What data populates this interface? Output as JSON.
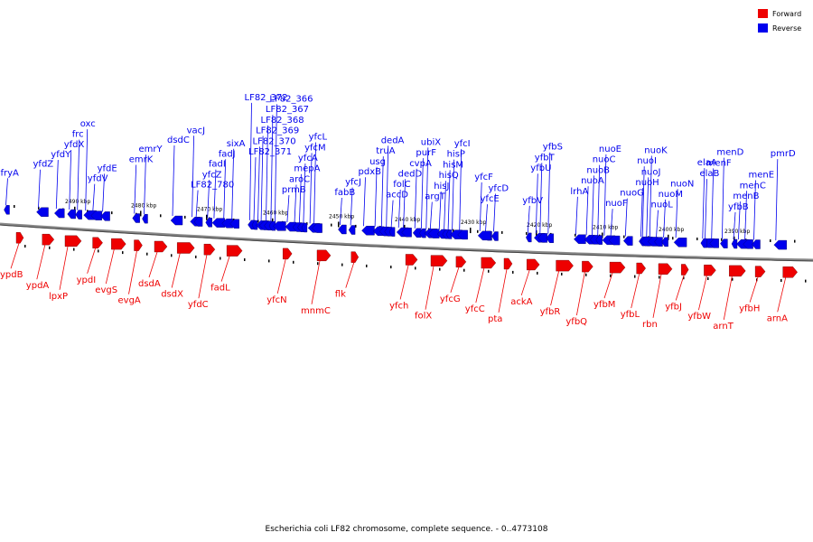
{
  "legend": {
    "forward_label": "Forward",
    "reverse_label": "Reverse",
    "forward_color": "#ee0000",
    "reverse_color": "#0000ee"
  },
  "caption": "Escherichia coli LF82 chromosome, complete sequence. - 0..4773108",
  "axis_ticks": [
    "2490 kbp",
    "2480 kbp",
    "2470 kbp",
    "2460 kbp",
    "2450 kbp",
    "2440 kbp",
    "2430 kbp",
    "2420 kbp",
    "2410 kbp",
    "2400 kbp",
    "2390 kbp"
  ],
  "reverse_genes": [
    {
      "name": "fryA",
      "at": 0.005
    },
    {
      "name": "yfdZ",
      "at": 0.045
    },
    {
      "name": "yfdY",
      "at": 0.067
    },
    {
      "name": "yfdX",
      "at": 0.083
    },
    {
      "name": "frc",
      "at": 0.093
    },
    {
      "name": "oxc",
      "at": 0.103
    },
    {
      "name": "yfdV",
      "at": 0.112
    },
    {
      "name": "yfdE",
      "at": 0.124
    },
    {
      "name": "emrK",
      "at": 0.163
    },
    {
      "name": "emrY",
      "at": 0.175
    },
    {
      "name": "dsdC",
      "at": 0.21
    },
    {
      "name": "vacJ",
      "at": 0.234
    },
    {
      "name": "LF82_780",
      "at": 0.239
    },
    {
      "name": "yfcZ",
      "at": 0.253
    },
    {
      "name": "fadI",
      "at": 0.261
    },
    {
      "name": "fadJ",
      "at": 0.273
    },
    {
      "name": "sixA",
      "at": 0.283
    },
    {
      "name": "LF82_372",
      "at": 0.305
    },
    {
      "name": "LF82_371",
      "at": 0.31
    },
    {
      "name": "LF82_370",
      "at": 0.315
    },
    {
      "name": "LF82_369",
      "at": 0.319
    },
    {
      "name": "LF82_368",
      "at": 0.325
    },
    {
      "name": "LF82_367",
      "at": 0.331
    },
    {
      "name": "LF82_366",
      "at": 0.336
    },
    {
      "name": "prmB",
      "at": 0.351
    },
    {
      "name": "aroC",
      "at": 0.36
    },
    {
      "name": "mepA",
      "at": 0.366
    },
    {
      "name": "yfcA",
      "at": 0.371
    },
    {
      "name": "yfcM",
      "at": 0.379
    },
    {
      "name": "yfcL",
      "at": 0.384
    },
    {
      "name": "fabB",
      "at": 0.416
    },
    {
      "name": "yfcJ",
      "at": 0.429
    },
    {
      "name": "pdxB",
      "at": 0.445
    },
    {
      "name": "usg",
      "at": 0.459
    },
    {
      "name": "truA",
      "at": 0.467
    },
    {
      "name": "dedA",
      "at": 0.473
    },
    {
      "name": "accD",
      "at": 0.479
    },
    {
      "name": "folC",
      "at": 0.488
    },
    {
      "name": "dedD",
      "at": 0.494
    },
    {
      "name": "cvpA",
      "at": 0.508
    },
    {
      "name": "purF",
      "at": 0.516
    },
    {
      "name": "ubiX",
      "at": 0.522
    },
    {
      "name": "argT",
      "at": 0.527
    },
    {
      "name": "hisJ",
      "at": 0.538
    },
    {
      "name": "hisQ",
      "at": 0.544
    },
    {
      "name": "hisM",
      "at": 0.549
    },
    {
      "name": "hisP",
      "at": 0.554
    },
    {
      "name": "yfcI",
      "at": 0.563
    },
    {
      "name": "yfcE",
      "at": 0.595
    },
    {
      "name": "yfcD",
      "at": 0.605
    },
    {
      "name": "yfcF",
      "at": 0.588
    },
    {
      "name": "yfbU",
      "at": 0.657
    },
    {
      "name": "yfbT",
      "at": 0.662
    },
    {
      "name": "yfbS",
      "at": 0.672
    },
    {
      "name": "yfbV",
      "at": 0.647
    },
    {
      "name": "lrhA",
      "at": 0.706
    },
    {
      "name": "nuoA",
      "at": 0.719
    },
    {
      "name": "nuoB",
      "at": 0.726
    },
    {
      "name": "nuoC",
      "at": 0.733
    },
    {
      "name": "nuoE",
      "at": 0.741
    },
    {
      "name": "nuoF",
      "at": 0.749
    },
    {
      "name": "nuoG",
      "at": 0.767
    },
    {
      "name": "nuoH",
      "at": 0.786
    },
    {
      "name": "nuoJ",
      "at": 0.793
    },
    {
      "name": "nuoI",
      "at": 0.788
    },
    {
      "name": "nuoK",
      "at": 0.797
    },
    {
      "name": "nuoL",
      "at": 0.805
    },
    {
      "name": "nuoM",
      "at": 0.814
    },
    {
      "name": "nuoN",
      "at": 0.829
    },
    {
      "name": "elaB",
      "at": 0.865
    },
    {
      "name": "menF",
      "at": 0.873
    },
    {
      "name": "menD",
      "at": 0.886
    },
    {
      "name": "yfbB",
      "at": 0.9
    },
    {
      "name": "menB",
      "at": 0.906
    },
    {
      "name": "menC",
      "at": 0.914
    },
    {
      "name": "menE",
      "at": 0.925
    },
    {
      "name": "elaA",
      "at": 0.862
    },
    {
      "name": "pmrD",
      "at": 0.952
    }
  ],
  "forward_genes": [
    {
      "name": "ypdB",
      "at": 0.02
    },
    {
      "name": "ypdA",
      "at": 0.052
    },
    {
      "name": "lpxP",
      "at": 0.08
    },
    {
      "name": "ypdI",
      "at": 0.114
    },
    {
      "name": "evgS",
      "at": 0.137
    },
    {
      "name": "evgA",
      "at": 0.165
    },
    {
      "name": "dsdA",
      "at": 0.19
    },
    {
      "name": "dsdX",
      "at": 0.218
    },
    {
      "name": "yfdC",
      "at": 0.251
    },
    {
      "name": "fadL",
      "at": 0.279
    },
    {
      "name": "yfcN",
      "at": 0.348
    },
    {
      "name": "mnmC",
      "at": 0.39
    },
    {
      "name": "flk",
      "at": 0.432
    },
    {
      "name": "yfch",
      "at": 0.499
    },
    {
      "name": "folX",
      "at": 0.53
    },
    {
      "name": "yfcG",
      "at": 0.561
    },
    {
      "name": "yfcC",
      "at": 0.592
    },
    {
      "name": "pta",
      "at": 0.62
    },
    {
      "name": "ackA",
      "at": 0.648
    },
    {
      "name": "yfbR",
      "at": 0.684
    },
    {
      "name": "yfbQ",
      "at": 0.716
    },
    {
      "name": "yfbM",
      "at": 0.75
    },
    {
      "name": "yfbL",
      "at": 0.783
    },
    {
      "name": "rbn",
      "at": 0.81
    },
    {
      "name": "yfbJ",
      "at": 0.838
    },
    {
      "name": "yfbW",
      "at": 0.866
    },
    {
      "name": "arnT",
      "at": 0.897
    },
    {
      "name": "yfbH",
      "at": 0.929
    },
    {
      "name": "arnA",
      "at": 0.963
    }
  ]
}
